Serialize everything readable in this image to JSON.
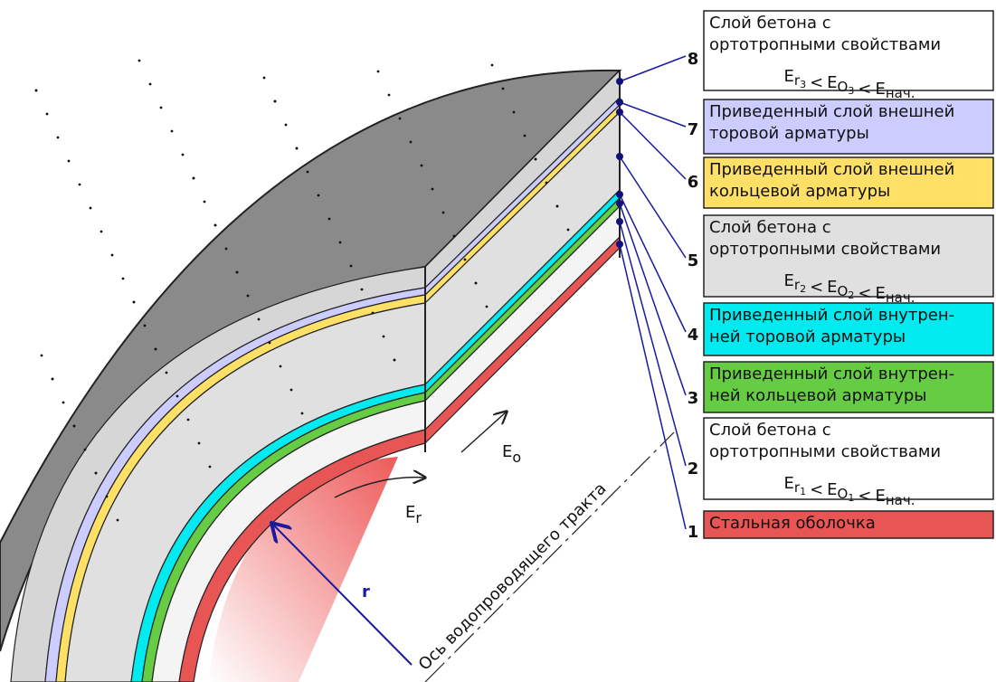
{
  "layers": [
    {
      "number": "8",
      "color": "#ffffff",
      "lines": [
        "Слой бетона с",
        "ортотропными свойствами"
      ],
      "formula": [
        {
          "base": "E",
          "sub": "r",
          "subsub": "3"
        },
        "<",
        {
          "base": "E",
          "sub": "O",
          "subsub": "3"
        },
        "<",
        {
          "base": "E",
          "sub": "нач."
        }
      ]
    },
    {
      "number": "7",
      "color": "#ccccff",
      "lines": [
        "Приведенный слой внешней",
        "торовой арматуры"
      ]
    },
    {
      "number": "6",
      "color": "#ffe066",
      "lines": [
        "Приведенный слой внешней",
        "кольцевой арматуры"
      ]
    },
    {
      "number": "5",
      "color": "#e0e0e0",
      "lines": [
        "Слой бетона с",
        "ортотропными свойствами"
      ],
      "formula": [
        {
          "base": "E",
          "sub": "r",
          "subsub": "2"
        },
        "<",
        {
          "base": "E",
          "sub": "O",
          "subsub": "2"
        },
        "<",
        {
          "base": "E",
          "sub": "нач."
        }
      ]
    },
    {
      "number": "4",
      "color": "#00eaf0",
      "lines": [
        "Приведенный слой внутрен-",
        "ней торовой арматуры"
      ]
    },
    {
      "number": "3",
      "color": "#66cc44",
      "lines": [
        "Приведенный слой внутрен-",
        "ней кольцевой арматуры"
      ]
    },
    {
      "number": "2",
      "color": "#ffffff",
      "lines": [
        "Слой бетона с",
        "ортотропными свойствами"
      ],
      "formula": [
        {
          "base": "E",
          "sub": "r",
          "subsub": "1"
        },
        "<",
        {
          "base": "E",
          "sub": "O",
          "subsub": "1"
        },
        "<",
        {
          "base": "E",
          "sub": "нач."
        }
      ]
    },
    {
      "number": "1",
      "color": "#e85555",
      "lines": [
        "Стальная оболочка"
      ]
    }
  ],
  "labels": {
    "e_o": {
      "base": "E",
      "sub": "o"
    },
    "e_r": {
      "base": "E",
      "sub": "r"
    },
    "radius": "r",
    "axis": "Ось водопроводящего тракта"
  }
}
